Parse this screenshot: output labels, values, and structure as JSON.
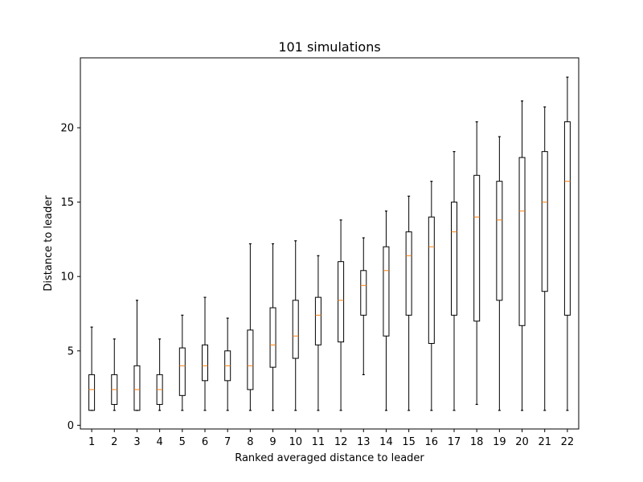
{
  "chart_data": {
    "type": "boxplot",
    "title": "101 simulations",
    "xlabel": "Ranked averaged distance to leader",
    "ylabel": "Distance to leader",
    "xlim": [
      0.5,
      22.5
    ],
    "ylim": [
      -0.25,
      24.7
    ],
    "yticks": [
      0,
      5,
      10,
      15,
      20
    ],
    "grid": false,
    "colors": {
      "box": "#000000",
      "median": "#ff7f0e",
      "background": "#ffffff"
    },
    "boxes": [
      {
        "x": "1",
        "whislo": 1.0,
        "q1": 1.0,
        "med": 2.4,
        "q3": 3.4,
        "whishi": 6.6
      },
      {
        "x": "2",
        "whislo": 1.0,
        "q1": 1.4,
        "med": 2.4,
        "q3": 3.4,
        "whishi": 5.8
      },
      {
        "x": "3",
        "whislo": 1.0,
        "q1": 1.0,
        "med": 2.4,
        "q3": 4.0,
        "whishi": 8.4
      },
      {
        "x": "4",
        "whislo": 1.0,
        "q1": 1.4,
        "med": 2.4,
        "q3": 3.4,
        "whishi": 5.8
      },
      {
        "x": "5",
        "whislo": 1.0,
        "q1": 2.0,
        "med": 4.0,
        "q3": 5.2,
        "whishi": 7.4
      },
      {
        "x": "6",
        "whislo": 1.0,
        "q1": 3.0,
        "med": 4.0,
        "q3": 5.4,
        "whishi": 8.6
      },
      {
        "x": "7",
        "whislo": 1.0,
        "q1": 3.0,
        "med": 4.0,
        "q3": 5.0,
        "whishi": 7.2
      },
      {
        "x": "8",
        "whislo": 1.0,
        "q1": 2.4,
        "med": 4.0,
        "q3": 6.4,
        "whishi": 12.2
      },
      {
        "x": "9",
        "whislo": 1.0,
        "q1": 3.9,
        "med": 5.4,
        "q3": 7.9,
        "whishi": 12.2
      },
      {
        "x": "10",
        "whislo": 1.0,
        "q1": 4.5,
        "med": 6.0,
        "q3": 8.4,
        "whishi": 12.4
      },
      {
        "x": "11",
        "whislo": 1.0,
        "q1": 5.4,
        "med": 7.4,
        "q3": 8.6,
        "whishi": 11.4
      },
      {
        "x": "12",
        "whislo": 1.0,
        "q1": 5.6,
        "med": 8.4,
        "q3": 11.0,
        "whishi": 13.8
      },
      {
        "x": "13",
        "whislo": 3.4,
        "q1": 7.4,
        "med": 9.4,
        "q3": 10.4,
        "whishi": 12.6
      },
      {
        "x": "14",
        "whislo": 1.0,
        "q1": 6.0,
        "med": 10.4,
        "q3": 12.0,
        "whishi": 14.4
      },
      {
        "x": "15",
        "whislo": 1.0,
        "q1": 7.4,
        "med": 11.4,
        "q3": 13.0,
        "whishi": 15.4
      },
      {
        "x": "16",
        "whislo": 1.0,
        "q1": 5.5,
        "med": 12.0,
        "q3": 14.0,
        "whishi": 16.4
      },
      {
        "x": "17",
        "whislo": 1.0,
        "q1": 7.4,
        "med": 13.0,
        "q3": 15.0,
        "whishi": 18.4
      },
      {
        "x": "18",
        "whislo": 1.4,
        "q1": 7.0,
        "med": 14.0,
        "q3": 16.8,
        "whishi": 20.4
      },
      {
        "x": "19",
        "whislo": 1.0,
        "q1": 8.4,
        "med": 13.8,
        "q3": 16.4,
        "whishi": 19.4
      },
      {
        "x": "20",
        "whislo": 1.0,
        "q1": 6.7,
        "med": 14.4,
        "q3": 18.0,
        "whishi": 21.8
      },
      {
        "x": "21",
        "whislo": 1.0,
        "q1": 9.0,
        "med": 15.0,
        "q3": 18.4,
        "whishi": 21.4
      },
      {
        "x": "22",
        "whislo": 1.0,
        "q1": 7.4,
        "med": 16.4,
        "q3": 20.4,
        "whishi": 23.4
      }
    ]
  }
}
